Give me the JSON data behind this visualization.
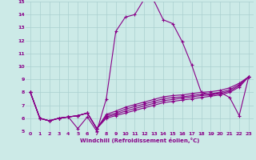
{
  "title": "",
  "xlabel": "Windchill (Refroidissement éolien,°C)",
  "background_color": "#cceae7",
  "grid_color": "#aacfcf",
  "line_color": "#880088",
  "xlim": [
    -0.5,
    23.5
  ],
  "ylim": [
    5,
    15
  ],
  "xticks": [
    0,
    1,
    2,
    3,
    4,
    5,
    6,
    7,
    8,
    9,
    10,
    11,
    12,
    13,
    14,
    15,
    16,
    17,
    18,
    19,
    20,
    21,
    22,
    23
  ],
  "yticks": [
    5,
    6,
    7,
    8,
    9,
    10,
    11,
    12,
    13,
    14,
    15
  ],
  "series": [
    [
      8.0,
      6.0,
      5.8,
      6.0,
      6.1,
      5.2,
      6.1,
      5.0,
      7.5,
      12.7,
      13.8,
      14.0,
      15.2,
      15.1,
      13.6,
      13.3,
      11.9,
      10.1,
      8.0,
      7.8,
      8.0,
      7.6,
      6.2,
      9.2
    ],
    [
      8.0,
      6.0,
      5.8,
      6.0,
      6.1,
      6.2,
      6.4,
      5.2,
      6.0,
      6.2,
      6.4,
      6.6,
      6.8,
      7.0,
      7.2,
      7.3,
      7.4,
      7.5,
      7.6,
      7.7,
      7.8,
      8.0,
      8.4,
      9.2
    ],
    [
      8.0,
      6.0,
      5.8,
      6.0,
      6.1,
      6.2,
      6.4,
      5.2,
      6.1,
      6.3,
      6.55,
      6.75,
      6.95,
      7.15,
      7.35,
      7.45,
      7.55,
      7.65,
      7.75,
      7.8,
      7.9,
      8.1,
      8.5,
      9.2
    ],
    [
      8.0,
      6.0,
      5.8,
      6.0,
      6.1,
      6.2,
      6.4,
      5.2,
      6.2,
      6.4,
      6.7,
      6.9,
      7.1,
      7.3,
      7.5,
      7.6,
      7.65,
      7.75,
      7.85,
      7.9,
      8.0,
      8.2,
      8.6,
      9.2
    ],
    [
      8.0,
      6.0,
      5.8,
      6.0,
      6.1,
      6.2,
      6.4,
      5.2,
      6.3,
      6.55,
      6.85,
      7.05,
      7.25,
      7.45,
      7.65,
      7.75,
      7.8,
      7.9,
      8.0,
      8.05,
      8.15,
      8.35,
      8.7,
      9.2
    ]
  ]
}
